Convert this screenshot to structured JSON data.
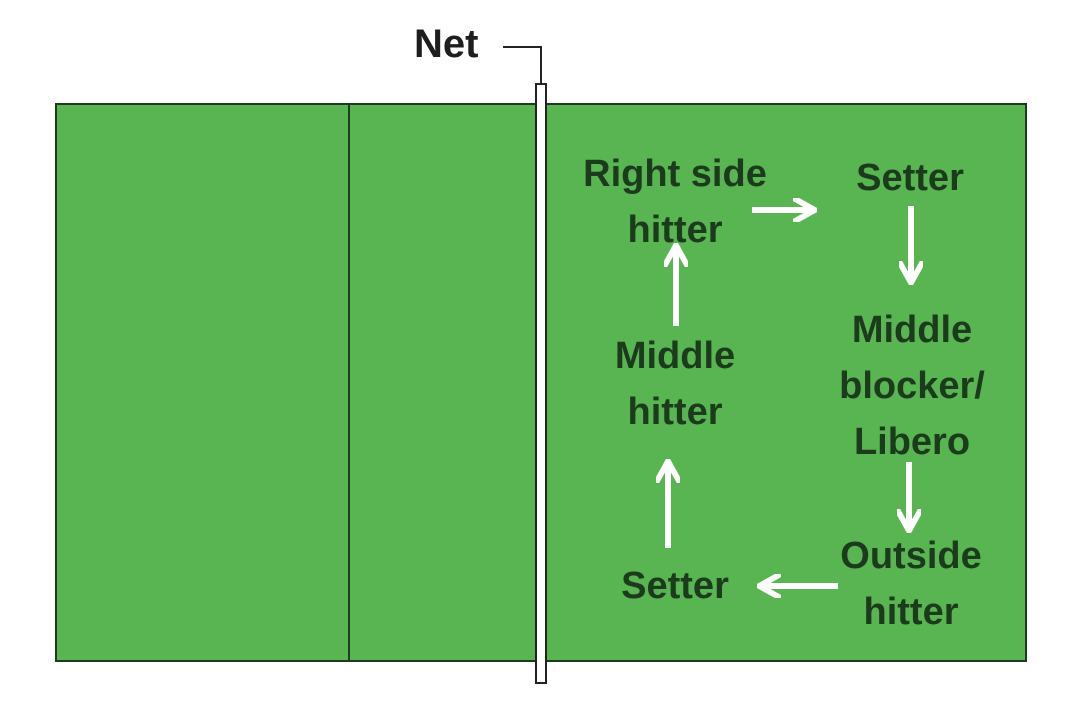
{
  "net_label": "Net",
  "colors": {
    "court": "#58b552",
    "court_line": "#1f3b1f",
    "net": "#ffffff",
    "arrow": "#ffffff",
    "label_text": "#1c3a1c"
  },
  "positions": {
    "right_side_hitter": "Right side\nhitter",
    "setter_front": "Setter",
    "middle_hitter": "Middle\nhitter",
    "middle_blocker_libero": "Middle\nblocker/\nLibero",
    "setter_back": "Setter",
    "outside_hitter": "Outside\nhitter"
  },
  "rotation_order": [
    "setter_back",
    "middle_hitter",
    "right_side_hitter",
    "setter_front",
    "middle_blocker_libero",
    "outside_hitter"
  ]
}
